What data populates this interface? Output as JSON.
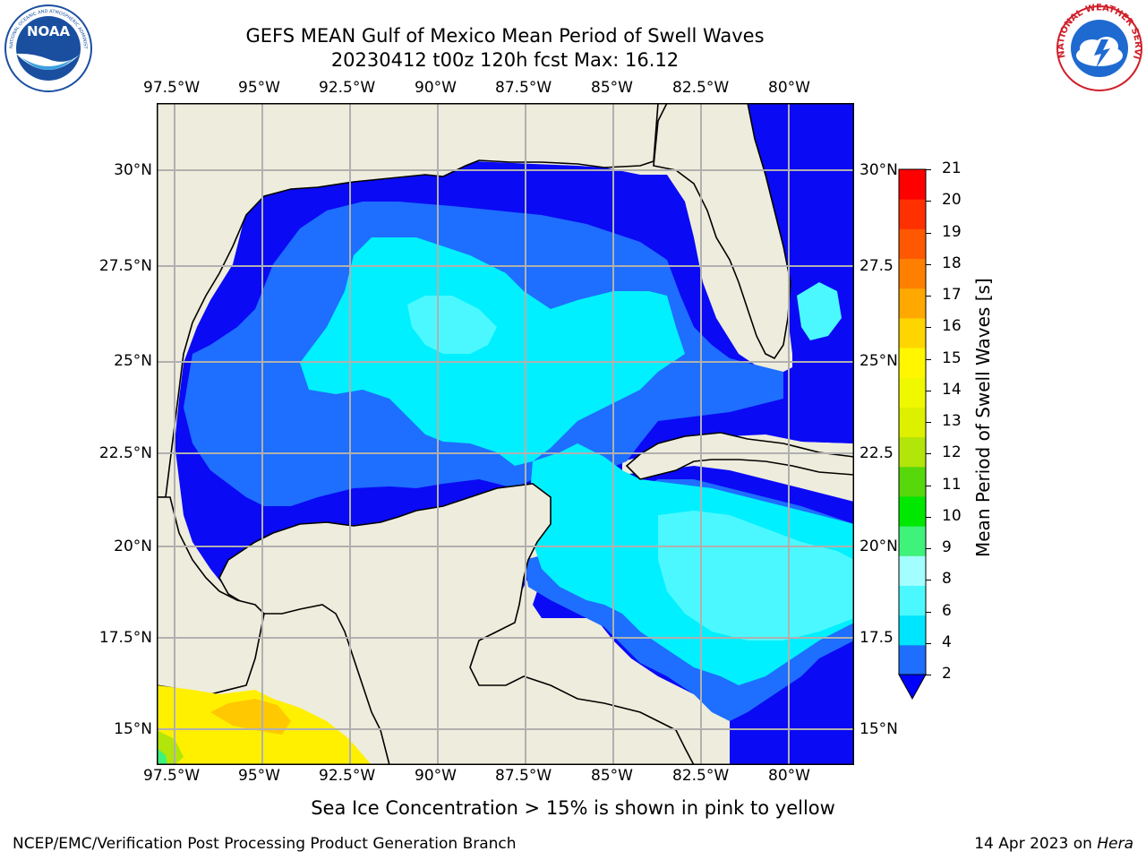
{
  "title_line1": "GEFS MEAN Gulf of Mexico Mean Period of Swell Waves",
  "title_line2": "20230412 t00z 120h fcst   Max: 16.12",
  "logos": {
    "noaa": {
      "text": "NOAA",
      "ring_text": "NATIONAL OCEANIC AND ATMOSPHERIC ADMINISTRATION · U.S. DEPARTMENT OF COMMERCE",
      "color": "#1a4fa0"
    },
    "nws": {
      "ring_text": "NATIONAL WEATHER SERVICE",
      "color": "#d0202a"
    }
  },
  "map": {
    "lon_ticks": [
      "97.5°W",
      "95°W",
      "92.5°W",
      "90°W",
      "87.5°W",
      "85°W",
      "82.5°W",
      "80°W"
    ],
    "lat_ticks_left": [
      "30°N",
      "27.5°N",
      "25°N",
      "22.5°N",
      "20°N",
      "17.5°N",
      "15°N"
    ],
    "lat_ticks_right": [
      "30°N",
      "27.5",
      "25°N",
      "22.5",
      "20°N",
      "17.5",
      "15°N"
    ],
    "lon_range": [
      -98,
      -78
    ],
    "lat_range": [
      14,
      32
    ],
    "land_color": "#eeecdc",
    "grid": true
  },
  "colorbar": {
    "label": "Mean Period of Swell Waves [s]",
    "ticks": [
      "2",
      "4",
      "6",
      "8",
      "9",
      "10",
      "11",
      "12",
      "13",
      "14",
      "15",
      "16",
      "17",
      "18",
      "19",
      "20",
      "21"
    ],
    "colors": [
      "#1e6eff",
      "#00e5ff",
      "#4cf8ff",
      "#a3ffff",
      "#3ff27a",
      "#00e800",
      "#57d80b",
      "#b2e50a",
      "#dcf000",
      "#f0f800",
      "#fff600",
      "#ffd500",
      "#ffa800",
      "#ff8000",
      "#ff5800",
      "#ff3000",
      "#ff0000"
    ],
    "under_color": "#0000ff"
  },
  "ice_note": "Sea Ice Concentration > 15% is shown in pink to yellow",
  "credit": "NCEP/EMC/Verification Post Processing Product Generation Branch",
  "date_prefix": "14 Apr 2023 on ",
  "date_machine": "Hera"
}
